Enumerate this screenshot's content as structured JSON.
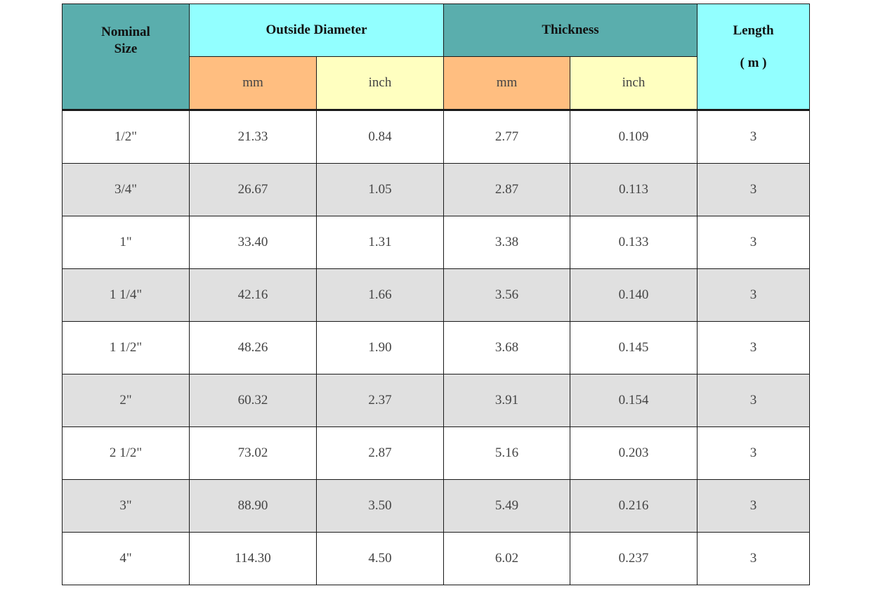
{
  "header": {
    "nominal_size_line1": "Nominal",
    "nominal_size_line2": "Size",
    "outside_diameter": "Outside Diameter",
    "thickness": "Thickness",
    "length": "Length",
    "length_unit": "( m )",
    "od_mm": "mm",
    "od_inch": "inch",
    "th_mm": "mm",
    "th_inch": "inch"
  },
  "colors": {
    "teal": "#5aaead",
    "cyan": "#92ffff",
    "orange": "#ffbe80",
    "yellow": "#ffffc0",
    "row_alt": "#e0e0e0"
  },
  "rows": [
    {
      "nominal": "1/2\"",
      "od_mm": "21.33",
      "od_inch": "0.84",
      "th_mm": "2.77",
      "th_inch": "0.109",
      "length": "3"
    },
    {
      "nominal": "3/4\"",
      "od_mm": "26.67",
      "od_inch": "1.05",
      "th_mm": "2.87",
      "th_inch": "0.113",
      "length": "3"
    },
    {
      "nominal": "1\"",
      "od_mm": "33.40",
      "od_inch": "1.31",
      "th_mm": "3.38",
      "th_inch": "0.133",
      "length": "3"
    },
    {
      "nominal": "1 1/4\"",
      "od_mm": "42.16",
      "od_inch": "1.66",
      "th_mm": "3.56",
      "th_inch": "0.140",
      "length": "3"
    },
    {
      "nominal": "1 1/2\"",
      "od_mm": "48.26",
      "od_inch": "1.90",
      "th_mm": "3.68",
      "th_inch": "0.145",
      "length": "3"
    },
    {
      "nominal": "2\"",
      "od_mm": "60.32",
      "od_inch": "2.37",
      "th_mm": "3.91",
      "th_inch": "0.154",
      "length": "3"
    },
    {
      "nominal": "2 1/2\"",
      "od_mm": "73.02",
      "od_inch": "2.87",
      "th_mm": "5.16",
      "th_inch": "0.203",
      "length": "3"
    },
    {
      "nominal": "3\"",
      "od_mm": "88.90",
      "od_inch": "3.50",
      "th_mm": "5.49",
      "th_inch": "0.216",
      "length": "3"
    },
    {
      "nominal": "4\"",
      "od_mm": "114.30",
      "od_inch": "4.50",
      "th_mm": "6.02",
      "th_inch": "0.237",
      "length": "3"
    }
  ]
}
